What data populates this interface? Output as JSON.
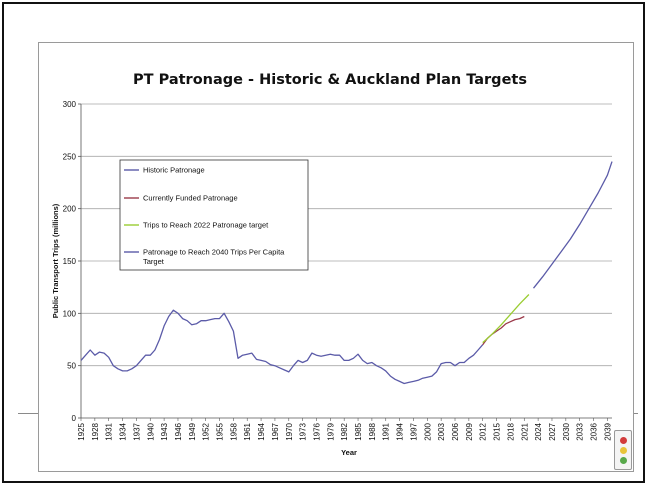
{
  "chart_data": {
    "type": "line",
    "title": "PT Patronage - Historic & Auckland Plan Targets",
    "xlabel": "Year",
    "ylabel": "Public Transport Trips (millions)",
    "xlim": [
      1925,
      2040
    ],
    "ylim": [
      0,
      300
    ],
    "yticks": [
      0,
      50,
      100,
      150,
      200,
      250,
      300
    ],
    "xtick_start": 1925,
    "xtick_step": 3,
    "xtick_end": 2039,
    "grid": "horizontal",
    "legend_position": "upper-left",
    "series": [
      {
        "name": "Historic Patronage",
        "color": "#5b5ba8",
        "points": [
          [
            1925,
            55
          ],
          [
            1926,
            60
          ],
          [
            1927,
            65
          ],
          [
            1928,
            60
          ],
          [
            1929,
            63
          ],
          [
            1930,
            62
          ],
          [
            1931,
            58
          ],
          [
            1932,
            50
          ],
          [
            1933,
            47
          ],
          [
            1934,
            45
          ],
          [
            1935,
            45
          ],
          [
            1936,
            47
          ],
          [
            1937,
            50
          ],
          [
            1938,
            55
          ],
          [
            1939,
            60
          ],
          [
            1940,
            60
          ],
          [
            1941,
            65
          ],
          [
            1942,
            75
          ],
          [
            1943,
            88
          ],
          [
            1944,
            97
          ],
          [
            1945,
            103
          ],
          [
            1946,
            100
          ],
          [
            1947,
            95
          ],
          [
            1948,
            93
          ],
          [
            1949,
            89
          ],
          [
            1950,
            90
          ],
          [
            1951,
            93
          ],
          [
            1952,
            93
          ],
          [
            1953,
            94
          ],
          [
            1954,
            95
          ],
          [
            1955,
            95
          ],
          [
            1956,
            100
          ],
          [
            1957,
            92
          ],
          [
            1958,
            83
          ],
          [
            1959,
            57
          ],
          [
            1960,
            60
          ],
          [
            1961,
            61
          ],
          [
            1962,
            62
          ],
          [
            1963,
            56
          ],
          [
            1964,
            55
          ],
          [
            1965,
            54
          ],
          [
            1966,
            51
          ],
          [
            1967,
            50
          ],
          [
            1968,
            48
          ],
          [
            1969,
            46
          ],
          [
            1970,
            44
          ],
          [
            1971,
            50
          ],
          [
            1972,
            55
          ],
          [
            1973,
            53
          ],
          [
            1974,
            55
          ],
          [
            1975,
            62
          ],
          [
            1976,
            60
          ],
          [
            1977,
            59
          ],
          [
            1978,
            60
          ],
          [
            1979,
            61
          ],
          [
            1980,
            60
          ],
          [
            1981,
            60
          ],
          [
            1982,
            55
          ],
          [
            1983,
            55
          ],
          [
            1984,
            57
          ],
          [
            1985,
            61
          ],
          [
            1986,
            55
          ],
          [
            1987,
            52
          ],
          [
            1988,
            53
          ],
          [
            1989,
            50
          ],
          [
            1990,
            48
          ],
          [
            1991,
            45
          ],
          [
            1992,
            40
          ],
          [
            1993,
            37
          ],
          [
            1994,
            35
          ],
          [
            1995,
            33
          ],
          [
            1996,
            34
          ],
          [
            1997,
            35
          ],
          [
            1998,
            36
          ],
          [
            1999,
            38
          ],
          [
            2000,
            39
          ],
          [
            2001,
            40
          ],
          [
            2002,
            44
          ],
          [
            2003,
            52
          ],
          [
            2004,
            53
          ],
          [
            2005,
            53
          ],
          [
            2006,
            50
          ],
          [
            2007,
            53
          ],
          [
            2008,
            53
          ],
          [
            2009,
            57
          ],
          [
            2010,
            60
          ],
          [
            2011,
            65
          ],
          [
            2012,
            70
          ]
        ]
      },
      {
        "name": "Currently Funded Patronage",
        "color": "#9b3a4a",
        "points": [
          [
            2012,
            70
          ],
          [
            2013,
            76
          ],
          [
            2014,
            80
          ],
          [
            2015,
            83
          ],
          [
            2016,
            86
          ],
          [
            2017,
            90
          ],
          [
            2018,
            92
          ],
          [
            2019,
            94
          ],
          [
            2020,
            95
          ],
          [
            2021,
            97
          ]
        ]
      },
      {
        "name": "Trips to Reach 2022 Patronage target",
        "color": "#9acd32",
        "points": [
          [
            2012,
            72
          ],
          [
            2014,
            80
          ],
          [
            2016,
            89
          ],
          [
            2018,
            99
          ],
          [
            2020,
            109
          ],
          [
            2022,
            118
          ]
        ]
      },
      {
        "name": "Patronage to Reach 2040 Trips Per Capita Target",
        "color": "#5b5ba8",
        "points": [
          [
            2023,
            124
          ],
          [
            2025,
            135
          ],
          [
            2027,
            147
          ],
          [
            2029,
            159
          ],
          [
            2031,
            171
          ],
          [
            2033,
            185
          ],
          [
            2035,
            200
          ],
          [
            2037,
            215
          ],
          [
            2039,
            232
          ],
          [
            2040,
            245
          ]
        ]
      }
    ]
  },
  "colors": {
    "grid": "#a8a8a8",
    "axis": "#555555",
    "frame": "#111111"
  },
  "icons": {
    "corner": "document-graphic-icon"
  }
}
